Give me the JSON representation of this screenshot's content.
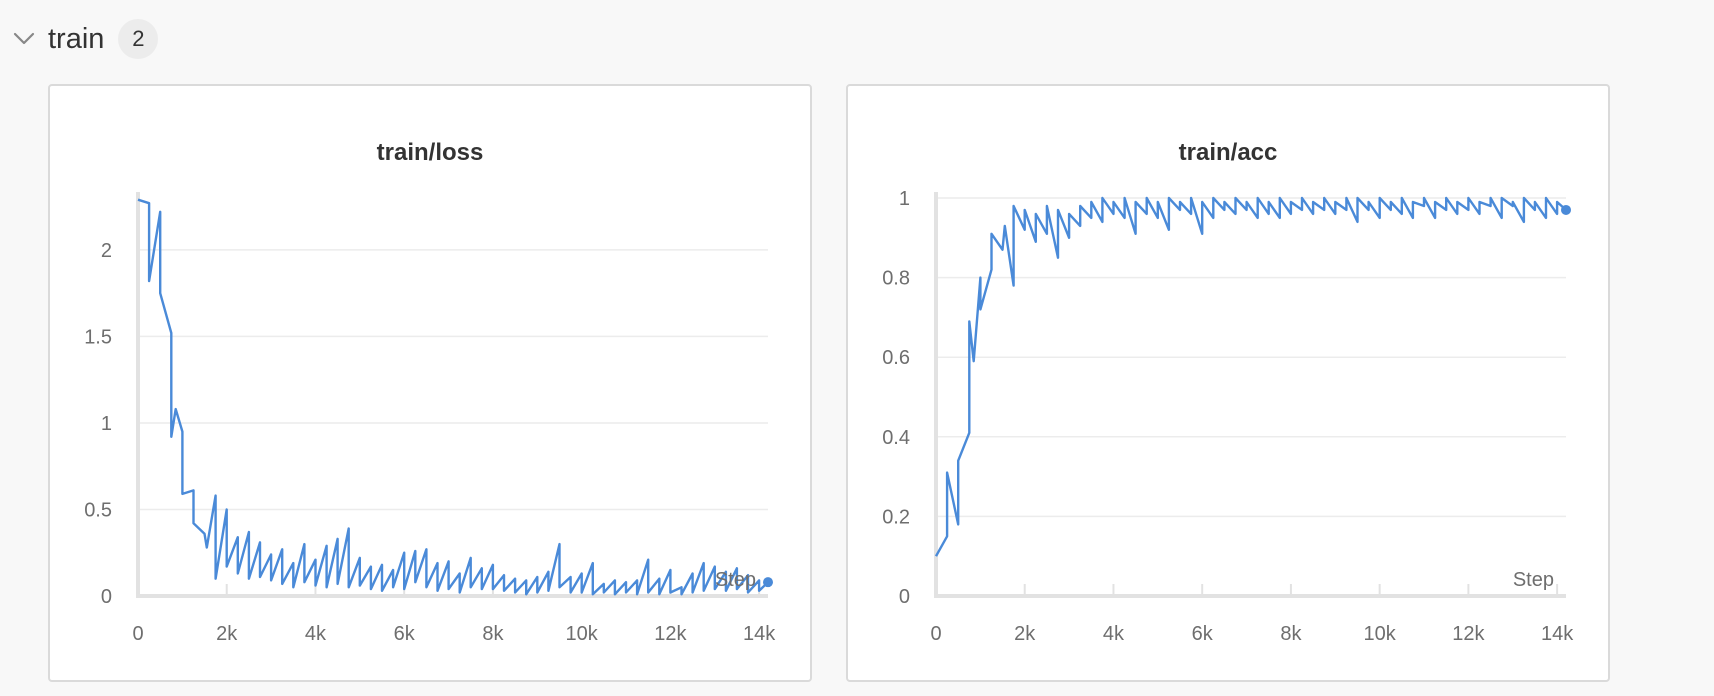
{
  "section": {
    "title": "train",
    "count": "2"
  },
  "colors": {
    "series": "#4a8ad8"
  },
  "chart_data": [
    {
      "type": "line",
      "title": "train/loss",
      "xlabel": "Step",
      "ylabel": "",
      "xlim": [
        0,
        14200
      ],
      "ylim": [
        0,
        2.3
      ],
      "xticks": [
        0,
        2000,
        4000,
        6000,
        8000,
        10000,
        12000,
        14000
      ],
      "xtick_labels": [
        "0",
        "2k",
        "4k",
        "6k",
        "8k",
        "10k",
        "12k",
        "14k"
      ],
      "yticks": [
        0,
        0.5,
        1,
        1.5,
        2
      ],
      "ytick_labels": [
        "0",
        "0.5",
        "1",
        "1.5",
        "2"
      ],
      "grid": true,
      "series": [
        {
          "x": [
            0,
            250,
            250,
            500,
            500,
            750,
            750,
            850,
            1000,
            1000,
            1250,
            1250,
            1500,
            1550,
            1750,
            1750,
            2000,
            2000,
            2250,
            2250,
            2500,
            2500,
            2750,
            2750,
            3000,
            3000,
            3250,
            3250,
            3500,
            3500,
            3750,
            3750,
            4000,
            4000,
            4250,
            4250,
            4500,
            4500,
            4750,
            4750,
            5000,
            5000,
            5250,
            5250,
            5500,
            5500,
            5750,
            5750,
            6000,
            6000,
            6250,
            6250,
            6500,
            6500,
            6750,
            6750,
            7000,
            7000,
            7250,
            7250,
            7500,
            7500,
            7750,
            7750,
            8000,
            8000,
            8250,
            8250,
            8500,
            8500,
            8750,
            8750,
            9000,
            9000,
            9250,
            9250,
            9500,
            9500,
            9750,
            9750,
            10000,
            10000,
            10250,
            10250,
            10500,
            10500,
            10750,
            10750,
            11000,
            11000,
            11250,
            11250,
            11500,
            11500,
            11750,
            11750,
            12000,
            12000,
            12250,
            12250,
            12500,
            12500,
            12750,
            12750,
            13000,
            13000,
            13250,
            13250,
            13500,
            13500,
            13750,
            13750,
            14000,
            14000,
            14200
          ],
          "y": [
            2.29,
            2.27,
            1.82,
            2.22,
            1.75,
            1.52,
            0.92,
            1.08,
            0.95,
            0.59,
            0.61,
            0.42,
            0.36,
            0.28,
            0.58,
            0.1,
            0.5,
            0.17,
            0.34,
            0.13,
            0.37,
            0.1,
            0.31,
            0.11,
            0.24,
            0.09,
            0.27,
            0.07,
            0.19,
            0.05,
            0.3,
            0.08,
            0.21,
            0.06,
            0.29,
            0.05,
            0.33,
            0.07,
            0.39,
            0.05,
            0.22,
            0.06,
            0.17,
            0.04,
            0.18,
            0.03,
            0.15,
            0.05,
            0.25,
            0.04,
            0.26,
            0.08,
            0.27,
            0.05,
            0.19,
            0.03,
            0.2,
            0.04,
            0.13,
            0.02,
            0.22,
            0.05,
            0.16,
            0.04,
            0.18,
            0.04,
            0.12,
            0.03,
            0.1,
            0.02,
            0.09,
            0.01,
            0.11,
            0.02,
            0.14,
            0.03,
            0.3,
            0.05,
            0.11,
            0.02,
            0.13,
            0.02,
            0.19,
            0.01,
            0.07,
            0.02,
            0.09,
            0.01,
            0.08,
            0.02,
            0.09,
            0.01,
            0.21,
            0.02,
            0.1,
            0.01,
            0.15,
            0.02,
            0.05,
            0.01,
            0.13,
            0.02,
            0.19,
            0.03,
            0.17,
            0.04,
            0.14,
            0.03,
            0.16,
            0.04,
            0.12,
            0.02,
            0.09,
            0.03,
            0.08
          ]
        }
      ]
    },
    {
      "type": "line",
      "title": "train/acc",
      "xlabel": "Step",
      "ylabel": "",
      "xlim": [
        0,
        14200
      ],
      "ylim": [
        0,
        1
      ],
      "xticks": [
        0,
        2000,
        4000,
        6000,
        8000,
        10000,
        12000,
        14000
      ],
      "xtick_labels": [
        "0",
        "2k",
        "4k",
        "6k",
        "8k",
        "10k",
        "12k",
        "14k"
      ],
      "yticks": [
        0,
        0.2,
        0.4,
        0.6,
        0.8,
        1
      ],
      "ytick_labels": [
        "0",
        "0.2",
        "0.4",
        "0.6",
        "0.8",
        "1"
      ],
      "grid": true,
      "series": [
        {
          "x": [
            0,
            250,
            250,
            500,
            500,
            750,
            750,
            850,
            1000,
            1000,
            1250,
            1250,
            1500,
            1550,
            1750,
            1750,
            2000,
            2000,
            2250,
            2250,
            2500,
            2500,
            2750,
            2750,
            3000,
            3000,
            3250,
            3250,
            3500,
            3500,
            3750,
            3750,
            4000,
            4000,
            4250,
            4250,
            4500,
            4500,
            4750,
            4750,
            5000,
            5000,
            5250,
            5250,
            5500,
            5500,
            5750,
            5750,
            6000,
            6000,
            6250,
            6250,
            6500,
            6500,
            6750,
            6750,
            7000,
            7000,
            7250,
            7250,
            7500,
            7500,
            7750,
            7750,
            8000,
            8000,
            8250,
            8250,
            8500,
            8500,
            8750,
            8750,
            9000,
            9000,
            9250,
            9250,
            9500,
            9500,
            9750,
            9750,
            10000,
            10000,
            10250,
            10250,
            10500,
            10500,
            10750,
            10750,
            11000,
            11000,
            11250,
            11250,
            11500,
            11500,
            11750,
            11750,
            12000,
            12000,
            12250,
            12250,
            12500,
            12500,
            12750,
            12750,
            13000,
            13000,
            13250,
            13250,
            13500,
            13500,
            13750,
            13750,
            14000,
            14000,
            14200
          ],
          "y": [
            0.1,
            0.15,
            0.31,
            0.18,
            0.34,
            0.41,
            0.69,
            0.59,
            0.8,
            0.72,
            0.82,
            0.91,
            0.87,
            0.93,
            0.78,
            0.98,
            0.92,
            0.97,
            0.89,
            0.96,
            0.91,
            0.98,
            0.85,
            0.97,
            0.9,
            0.96,
            0.93,
            0.98,
            0.95,
            0.99,
            0.94,
            1.0,
            0.96,
            0.99,
            0.95,
            1.0,
            0.91,
            0.99,
            0.96,
            1.0,
            0.95,
            0.99,
            0.92,
            1.0,
            0.97,
            0.99,
            0.96,
            1.0,
            0.91,
            0.99,
            0.95,
            1.0,
            0.97,
            0.99,
            0.96,
            1.0,
            0.97,
            0.99,
            0.95,
            1.0,
            0.96,
            0.99,
            0.95,
            1.0,
            0.96,
            0.99,
            0.97,
            1.0,
            0.96,
            0.99,
            0.97,
            1.0,
            0.96,
            0.99,
            0.97,
            1.0,
            0.94,
            1.0,
            0.97,
            0.99,
            0.95,
            1.0,
            0.97,
            0.99,
            0.96,
            1.0,
            0.95,
            0.99,
            0.98,
            1.0,
            0.95,
            0.99,
            0.97,
            1.0,
            0.96,
            0.99,
            0.97,
            1.0,
            0.96,
            0.99,
            0.98,
            1.0,
            0.95,
            1.0,
            0.98,
            0.99,
            0.94,
            1.0,
            0.97,
            0.99,
            0.95,
            1.0,
            0.96,
            0.99,
            0.97
          ]
        }
      ]
    }
  ]
}
